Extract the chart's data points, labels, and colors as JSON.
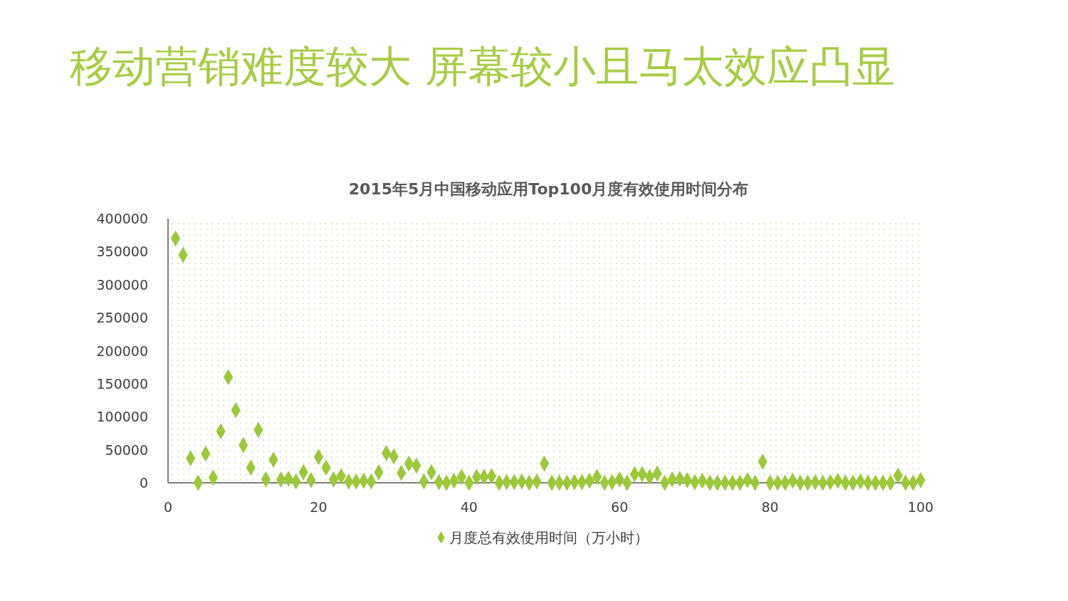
{
  "chart_data": {
    "type": "scatter",
    "title": "移动营销难度较大 屏幕较小且马太效应凸显",
    "subtitle": "2015年5月中国移动应用Top100月度有效使用时间分布",
    "x": [
      1,
      2,
      3,
      4,
      5,
      6,
      7,
      8,
      9,
      10,
      11,
      12,
      13,
      14,
      15,
      16,
      17,
      18,
      19,
      20,
      21,
      22,
      23,
      24,
      25,
      26,
      27,
      28,
      29,
      30,
      31,
      32,
      33,
      34,
      35,
      36,
      37,
      38,
      39,
      40,
      41,
      42,
      43,
      44,
      45,
      46,
      47,
      48,
      49,
      50,
      51,
      52,
      53,
      54,
      55,
      56,
      57,
      58,
      59,
      60,
      61,
      62,
      63,
      64,
      65,
      66,
      67,
      68,
      69,
      70,
      71,
      72,
      73,
      74,
      75,
      76,
      77,
      78,
      79,
      80,
      81,
      82,
      83,
      84,
      85,
      86,
      87,
      88,
      89,
      90,
      91,
      92,
      93,
      94,
      95,
      96,
      97,
      98,
      99,
      100
    ],
    "series": [
      {
        "name": "月度总有效使用时间（万小时）",
        "color": "#9cc83a",
        "values": [
          370000,
          345000,
          37000,
          0,
          44000,
          8000,
          78000,
          160000,
          110000,
          57000,
          23000,
          80000,
          5000,
          35000,
          5000,
          6000,
          2000,
          16000,
          4000,
          39000,
          23000,
          5000,
          10000,
          2000,
          2000,
          3000,
          2000,
          16000,
          45000,
          40000,
          15000,
          29000,
          26000,
          2000,
          16000,
          1000,
          0,
          3000,
          9000,
          0,
          9000,
          9000,
          10000,
          0,
          1000,
          1000,
          2000,
          0,
          2000,
          29000,
          0,
          0,
          0,
          1000,
          1000,
          3000,
          9000,
          0,
          1000,
          5000,
          0,
          13000,
          13000,
          9000,
          14000,
          0,
          5000,
          6000,
          4000,
          1000,
          3000,
          0,
          0,
          0,
          0,
          0,
          4000,
          0,
          32000,
          0,
          0,
          0,
          3000,
          0,
          0,
          1000,
          0,
          1000,
          3000,
          0,
          0,
          2000,
          0,
          0,
          0,
          0,
          11000,
          0,
          0,
          4000
        ]
      }
    ],
    "xlim": [
      0,
      100
    ],
    "xticks": [
      0,
      20,
      40,
      60,
      80,
      100
    ],
    "ylim": [
      0,
      400000
    ],
    "yticks": [
      0,
      50000,
      100000,
      150000,
      200000,
      250000,
      300000,
      350000,
      400000
    ],
    "marker": "diamond",
    "legend": "bottom"
  }
}
